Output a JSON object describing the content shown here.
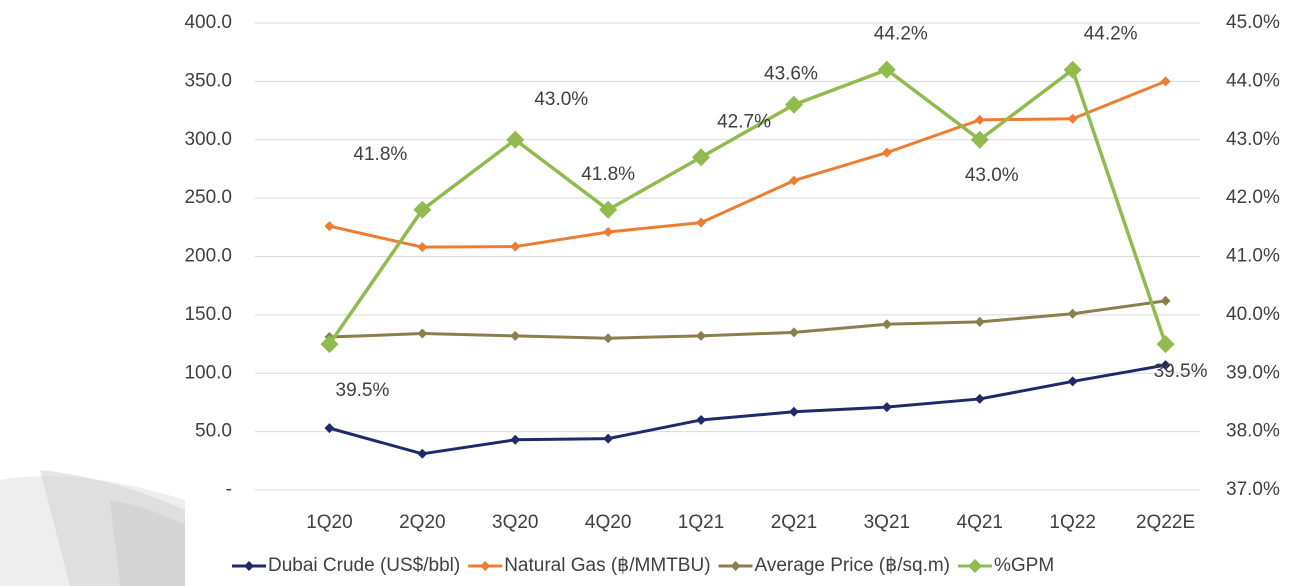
{
  "chart_data": {
    "type": "line",
    "categories": [
      "1Q20",
      "2Q20",
      "3Q20",
      "4Q20",
      "1Q21",
      "2Q21",
      "3Q21",
      "4Q21",
      "1Q22",
      "2Q22E"
    ],
    "series": [
      {
        "name": "Dubai Crude (US$/bbl)",
        "color": "#1f2a6b",
        "values": [
          53,
          31,
          43,
          44,
          60,
          67,
          71,
          78,
          93,
          107
        ]
      },
      {
        "name": "Natural Gas (฿/MMTBU)",
        "color": "#ed7d31",
        "values": [
          226,
          208,
          208.5,
          221,
          229,
          265,
          289,
          317,
          318,
          350
        ]
      },
      {
        "name": "Average Price (฿/sq.m)",
        "color": "#8c7f4e",
        "values": [
          131,
          134,
          132,
          130,
          132,
          135,
          142,
          144,
          151,
          162
        ]
      },
      {
        "name": "%GPM",
        "color": "#92bb4f",
        "axis": "y2",
        "values": [
          39.5,
          41.8,
          43.0,
          41.8,
          42.7,
          43.6,
          44.2,
          43.0,
          44.2,
          39.5
        ],
        "value_labels": [
          "39.5%",
          "41.8%",
          "43.0%",
          "41.8%",
          "42.7%",
          "43.6%",
          "44.2%",
          "43.0%",
          "44.2%",
          "39.5%"
        ]
      }
    ],
    "ylim": [
      0,
      400
    ],
    "yticks": [
      {
        "value": 0,
        "label": "-"
      },
      {
        "value": 50,
        "label": "50.0"
      },
      {
        "value": 100,
        "label": "100.0"
      },
      {
        "value": 150,
        "label": "150.0"
      },
      {
        "value": 200,
        "label": "200.0"
      },
      {
        "value": 250,
        "label": "250.0"
      },
      {
        "value": 300,
        "label": "300.0"
      },
      {
        "value": 350,
        "label": "350.0"
      },
      {
        "value": 400,
        "label": "400.0"
      }
    ],
    "y2lim": [
      37,
      45
    ],
    "y2ticks": [
      {
        "value": 37,
        "label": "37.0%"
      },
      {
        "value": 38,
        "label": "38.0%"
      },
      {
        "value": 39,
        "label": "39.0%"
      },
      {
        "value": 40,
        "label": "40.0%"
      },
      {
        "value": 41,
        "label": "41.0%"
      },
      {
        "value": 42,
        "label": "42.0%"
      },
      {
        "value": 43,
        "label": "43.0%"
      },
      {
        "value": 44,
        "label": "44.0%"
      },
      {
        "value": 45,
        "label": "45.0%"
      }
    ],
    "grid": true,
    "legend": "bottom"
  }
}
